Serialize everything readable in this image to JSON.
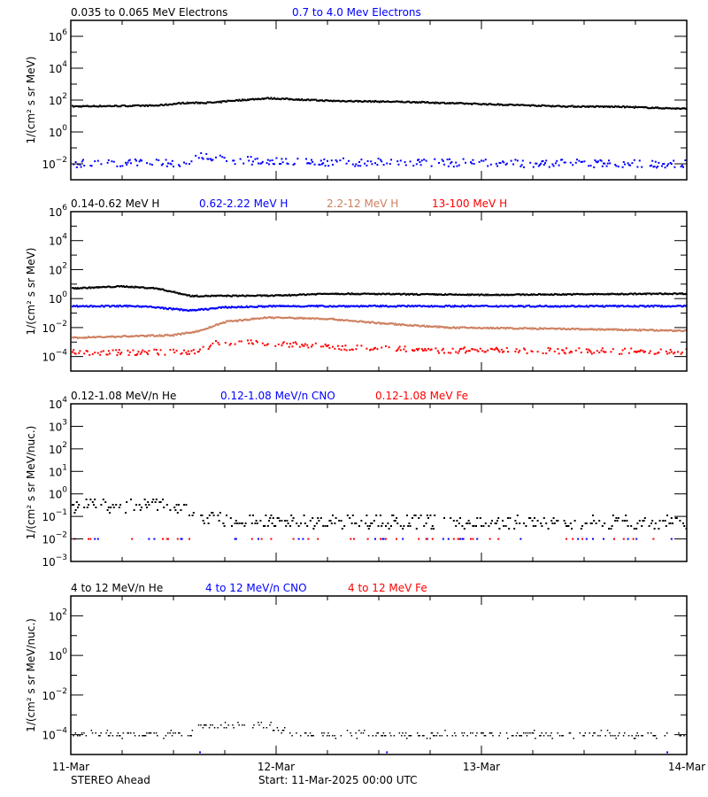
{
  "footer": {
    "spacecraft": "STEREO Ahead",
    "start": "Start: 11-Mar-2025 00:00 UTC"
  },
  "colors": {
    "black": "#000000",
    "blue": "#0000ff",
    "brown": "#cd7f5f",
    "red": "#ff0000"
  },
  "chart_data": [
    {
      "type": "scatter",
      "yscale": "log",
      "ylim": [
        0.001,
        10000000.0
      ],
      "ylabel": "1/(cm² s sr MeV)",
      "yticks": [
        1000000.0,
        10000.0,
        100.0,
        1.0,
        0.01
      ],
      "xlim": [
        "2025-03-11T00:00",
        "2025-03-14T00:00"
      ],
      "series": [
        {
          "name": "0.035 to 0.065 MeV Electrons",
          "color": "#000000",
          "values": [
            [
              "2025-03-11T00:00",
              40
            ],
            [
              "2025-03-11T10:00",
              45
            ],
            [
              "2025-03-11T13:00",
              65
            ],
            [
              "2025-03-11T17:00",
              70
            ],
            [
              "2025-03-11T18:00",
              85
            ],
            [
              "2025-03-11T23:00",
              130
            ],
            [
              "2025-03-12T06:00",
              90
            ],
            [
              "2025-03-12T16:00",
              75
            ],
            [
              "2025-03-12T22:00",
              60
            ],
            [
              "2025-03-13T10:00",
              40
            ],
            [
              "2025-03-13T16:00",
              38
            ],
            [
              "2025-03-14T00:00",
              28
            ]
          ]
        },
        {
          "name": "0.7 to 4.0 Mev Electrons",
          "color": "#0000ff",
          "values": [
            [
              "2025-03-11T00:00",
              0.01
            ],
            [
              "2025-03-11T13:00",
              0.012
            ],
            [
              "2025-03-11T15:00",
              0.03
            ],
            [
              "2025-03-11T18:00",
              0.018
            ],
            [
              "2025-03-12T00:00",
              0.014
            ],
            [
              "2025-03-13T00:00",
              0.011
            ],
            [
              "2025-03-14T00:00",
              0.01
            ]
          ]
        }
      ]
    },
    {
      "type": "scatter",
      "yscale": "log",
      "ylim": [
        1e-05,
        1000000.0
      ],
      "ylabel": "1/(cm² s sr MeV)",
      "yticks": [
        1000000.0,
        10000.0,
        100.0,
        1.0,
        0.01,
        0.0001
      ],
      "xlim": [
        "2025-03-11T00:00",
        "2025-03-14T00:00"
      ],
      "series": [
        {
          "name": "0.14-0.62 MeV H",
          "color": "#000000",
          "values": [
            [
              "2025-03-11T00:00",
              5
            ],
            [
              "2025-03-11T06:00",
              7
            ],
            [
              "2025-03-11T10:00",
              5
            ],
            [
              "2025-03-11T14:00",
              1.5
            ],
            [
              "2025-03-12T00:00",
              1.6
            ],
            [
              "2025-03-12T06:00",
              2.2
            ],
            [
              "2025-03-13T00:00",
              1.8
            ],
            [
              "2025-03-14T00:00",
              2.2
            ]
          ]
        },
        {
          "name": "0.62-2.22 MeV H",
          "color": "#0000ff",
          "values": [
            [
              "2025-03-11T00:00",
              0.3
            ],
            [
              "2025-03-11T08:00",
              0.3
            ],
            [
              "2025-03-11T14:00",
              0.15
            ],
            [
              "2025-03-11T18:00",
              0.25
            ],
            [
              "2025-03-12T00:00",
              0.3
            ],
            [
              "2025-03-14T00:00",
              0.3
            ]
          ]
        },
        {
          "name": "2.2-12 MeV H",
          "color": "#cd7f5f",
          "values": [
            [
              "2025-03-11T00:00",
              0.002
            ],
            [
              "2025-03-11T12:00",
              0.003
            ],
            [
              "2025-03-11T15:00",
              0.006
            ],
            [
              "2025-03-11T18:00",
              0.025
            ],
            [
              "2025-03-11T23:00",
              0.05
            ],
            [
              "2025-03-12T06:00",
              0.04
            ],
            [
              "2025-03-12T12:00",
              0.02
            ],
            [
              "2025-03-12T20:00",
              0.01
            ],
            [
              "2025-03-13T10:00",
              0.008
            ],
            [
              "2025-03-14T00:00",
              0.006
            ]
          ]
        },
        {
          "name": "13-100 MeV H",
          "color": "#ff0000",
          "values": [
            [
              "2025-03-11T00:00",
              0.0002
            ],
            [
              "2025-03-11T14:00",
              0.0002
            ],
            [
              "2025-03-11T17:00",
              0.0008
            ],
            [
              "2025-03-11T20:00",
              0.001
            ],
            [
              "2025-03-12T02:00",
              0.0007
            ],
            [
              "2025-03-12T08:00",
              0.0004
            ],
            [
              "2025-03-12T18:00",
              0.00028
            ],
            [
              "2025-03-14T00:00",
              0.00022
            ]
          ]
        }
      ]
    },
    {
      "type": "scatter",
      "yscale": "log",
      "ylim": [
        0.001,
        10000.0
      ],
      "ylabel": "1/(cm² s sr MeV/nuc.)",
      "yticks": [
        10000.0,
        1000.0,
        100.0,
        10.0,
        1.0,
        0.1,
        0.01,
        0.001
      ],
      "xlim": [
        "2025-03-11T00:00",
        "2025-03-14T00:00"
      ],
      "series": [
        {
          "name": "0.12-1.08 MeV/n He",
          "color": "#000000",
          "values": [
            [
              "2025-03-11T00:00",
              0.3
            ],
            [
              "2025-03-11T12:00",
              0.3
            ],
            [
              "2025-03-11T15:00",
              0.1
            ],
            [
              "2025-03-11T20:00",
              0.06
            ],
            [
              "2025-03-14T00:00",
              0.05
            ]
          ]
        },
        {
          "name": "0.12-1.08 MeV/n CNO",
          "color": "#0000ff",
          "values": [
            [
              "2025-03-11T00:00",
              0.01
            ],
            [
              "2025-03-14T00:00",
              0.01
            ]
          ]
        },
        {
          "name": "0.12-1.08 MeV Fe",
          "color": "#ff0000",
          "values": [
            [
              "2025-03-11T00:00",
              0.01
            ],
            [
              "2025-03-14T00:00",
              0.01
            ]
          ]
        }
      ]
    },
    {
      "type": "scatter",
      "yscale": "log",
      "ylim": [
        1e-05,
        1000.0
      ],
      "ylabel": "1/(cm² s sr MeV/nuc.)",
      "yticks": [
        100.0,
        1.0,
        0.01,
        0.0001
      ],
      "xlim": [
        "2025-03-11T00:00",
        "2025-03-14T00:00"
      ],
      "xticks": [
        "11-Mar",
        "12-Mar",
        "13-Mar",
        "14-Mar"
      ],
      "series": [
        {
          "name": "4 to 12 MeV/n He",
          "color": "#000000",
          "values": [
            [
              "2025-03-11T00:00",
              0.0001
            ],
            [
              "2025-03-11T14:00",
              0.0001
            ],
            [
              "2025-03-11T15:00",
              0.00025
            ],
            [
              "2025-03-11T23:00",
              0.0003
            ],
            [
              "2025-03-12T02:00",
              0.0001
            ],
            [
              "2025-03-14T00:00",
              0.0001
            ]
          ]
        },
        {
          "name": "4 to 12 MeV/n CNO",
          "color": "#0000ff",
          "values": [
            [
              "2025-03-11T00:00",
              1.3e-05
            ],
            [
              "2025-03-14T00:00",
              1.3e-05
            ]
          ]
        },
        {
          "name": "4 to 12 MeV Fe",
          "color": "#ff0000",
          "values": []
        }
      ]
    }
  ]
}
